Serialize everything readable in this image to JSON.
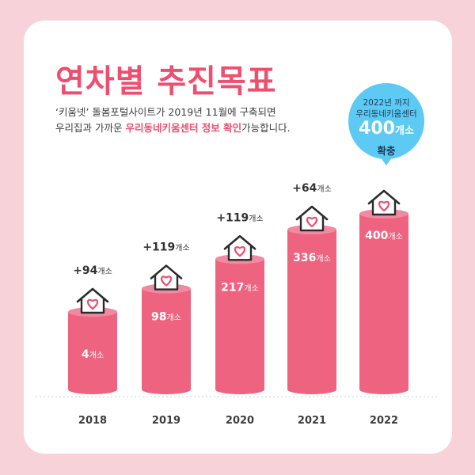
{
  "title": "연차별 추진목표",
  "description": {
    "line1": "‘키움넷’ 돌봄포털사이트가 2019년 11월에 구축되면",
    "line2_prefix": "우리집과 가까운 ",
    "line2_highlight": "우리동네키움센터 정보 확인",
    "line2_suffix": "가능합니다."
  },
  "bubble": {
    "line1": "2022년 까지",
    "line2": "우리동네키움센터",
    "value": "400",
    "unit": "개소",
    "line4": "확충"
  },
  "colors": {
    "background": "#f7d3d9",
    "accent": "#ee4f6f",
    "bar": "#ee6480",
    "bar_top": "#f18aa0",
    "bubble": "#5ccaf2"
  },
  "chart_data": {
    "type": "bar",
    "categories": [
      "2018",
      "2019",
      "2020",
      "2021",
      "2022"
    ],
    "values": [
      4,
      98,
      217,
      336,
      400
    ],
    "value_labels": [
      "4",
      "98",
      "217",
      "336",
      "400"
    ],
    "increments": [
      "+94",
      "+119",
      "+119",
      "+64",
      ""
    ],
    "unit": "개소",
    "icon": "house-heart-icon",
    "ylim": [
      0,
      400
    ],
    "grid": false,
    "legend": "none"
  }
}
